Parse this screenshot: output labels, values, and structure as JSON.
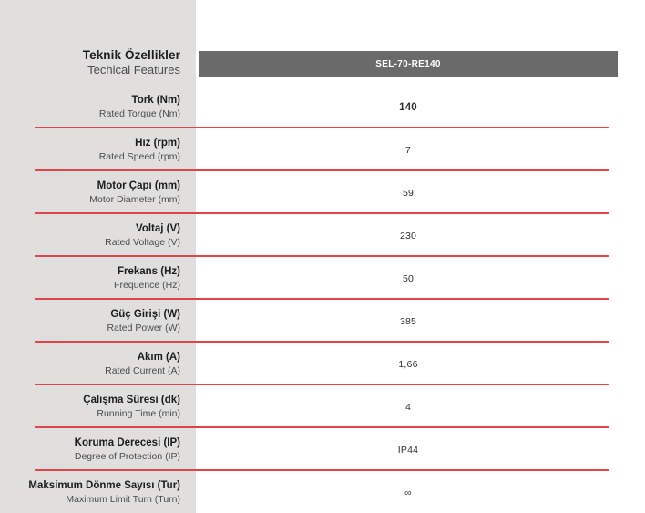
{
  "header": {
    "title_tr": "Teknik Özellikler",
    "title_en": "Techical Features",
    "model": "SEL-70-RE140"
  },
  "colors": {
    "accent_red": "#e0454a",
    "panel_gray": "#e0dfde",
    "bar_gray": "#6a6a6a"
  },
  "rows": [
    {
      "label_tr": "Tork (Nm)",
      "label_en": "Rated Torque (Nm)",
      "value": "140",
      "emphasis": true
    },
    {
      "label_tr": "Hız (rpm)",
      "label_en": "Rated Speed (rpm)",
      "value": "7",
      "emphasis": false
    },
    {
      "label_tr": "Motor Çapı (mm)",
      "label_en": "Motor Diameter (mm)",
      "value": "59",
      "emphasis": false
    },
    {
      "label_tr": "Voltaj (V)",
      "label_en": "Rated Voltage (V)",
      "value": "230",
      "emphasis": false
    },
    {
      "label_tr": "Frekans (Hz)",
      "label_en": "Frequence (Hz)",
      "value": "50",
      "emphasis": false
    },
    {
      "label_tr": "Güç Girişi (W)",
      "label_en": "Rated Power (W)",
      "value": "385",
      "emphasis": false
    },
    {
      "label_tr": "Akım (A)",
      "label_en": "Rated Current (A)",
      "value": "1,66",
      "emphasis": false
    },
    {
      "label_tr": "Çalışma Süresi (dk)",
      "label_en": "Running Time (min)",
      "value": "4",
      "emphasis": false
    },
    {
      "label_tr": "Koruma Derecesi (IP)",
      "label_en": "Degree of Protection (IP)",
      "value": "IP44",
      "emphasis": false
    },
    {
      "label_tr": "Maksimum Dönme Sayısı (Tur)",
      "label_en": "Maximum Limit Turn (Turn)",
      "value": "∞",
      "emphasis": false
    }
  ]
}
